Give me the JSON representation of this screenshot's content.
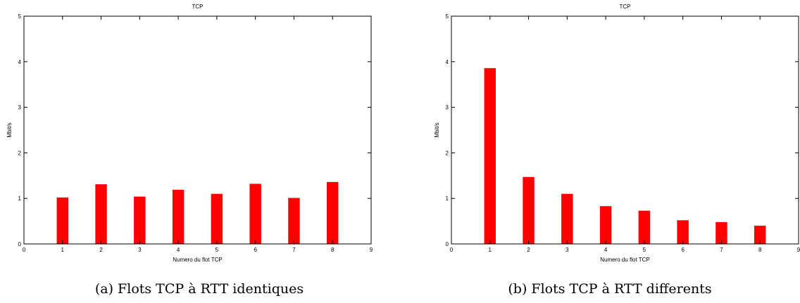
{
  "chart_data": [
    {
      "type": "bar",
      "title": "TCP",
      "xlabel": "Numero du flot TCP",
      "ylabel": "Mbit/s",
      "xlim": [
        0,
        9
      ],
      "ylim": [
        0,
        5
      ],
      "xticks": [
        "0",
        "1",
        "2",
        "3",
        "4",
        "5",
        "6",
        "7",
        "8",
        "9"
      ],
      "yticks": [
        "0",
        "1",
        "2",
        "3",
        "4",
        "5"
      ],
      "x": [
        1,
        2,
        3,
        4,
        5,
        6,
        7,
        8
      ],
      "values": [
        1.02,
        1.31,
        1.04,
        1.19,
        1.1,
        1.32,
        1.01,
        1.36
      ],
      "bar_color": "#ff0000",
      "grid": false,
      "caption": "(a) Flots TCP à RTT identiques"
    },
    {
      "type": "bar",
      "title": "TCP",
      "xlabel": "Numero du flot TCP",
      "ylabel": "Mbit/s",
      "xlim": [
        0,
        9
      ],
      "ylim": [
        0,
        5
      ],
      "xticks": [
        "0",
        "1",
        "2",
        "3",
        "4",
        "5",
        "6",
        "7",
        "8",
        "9"
      ],
      "yticks": [
        "0",
        "1",
        "2",
        "3",
        "4",
        "5"
      ],
      "x": [
        1,
        2,
        3,
        4,
        5,
        6,
        7,
        8
      ],
      "values": [
        3.86,
        1.47,
        1.1,
        0.83,
        0.73,
        0.52,
        0.48,
        0.4
      ],
      "bar_color": "#ff0000",
      "grid": false,
      "caption": "(b) Flots TCP à RTT differents"
    }
  ]
}
